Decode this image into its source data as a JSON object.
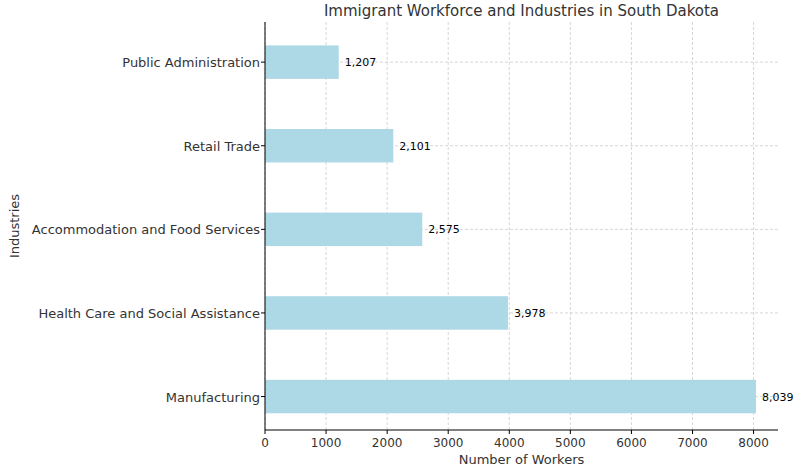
{
  "chart_data": {
    "type": "bar",
    "orientation": "horizontal",
    "title": "Immigrant Workforce and Industries in South Dakota",
    "x_label": "Number of Workers",
    "y_label": "Industries",
    "categories": [
      "Manufacturing",
      "Health Care and Social Assistance",
      "Accommodation and Food Services",
      "Retail Trade",
      "Public Administration"
    ],
    "values": [
      8039,
      3978,
      2575,
      2101,
      1207
    ],
    "value_labels": [
      "8,039",
      "3,978",
      "2,575",
      "2,101",
      "1,207"
    ],
    "data_labels": true,
    "color": "#add8e6",
    "xlim": [
      0,
      8400
    ],
    "xticks": [
      0,
      1000,
      2000,
      3000,
      4000,
      5000,
      6000,
      7000,
      8000
    ],
    "grid": true
  }
}
